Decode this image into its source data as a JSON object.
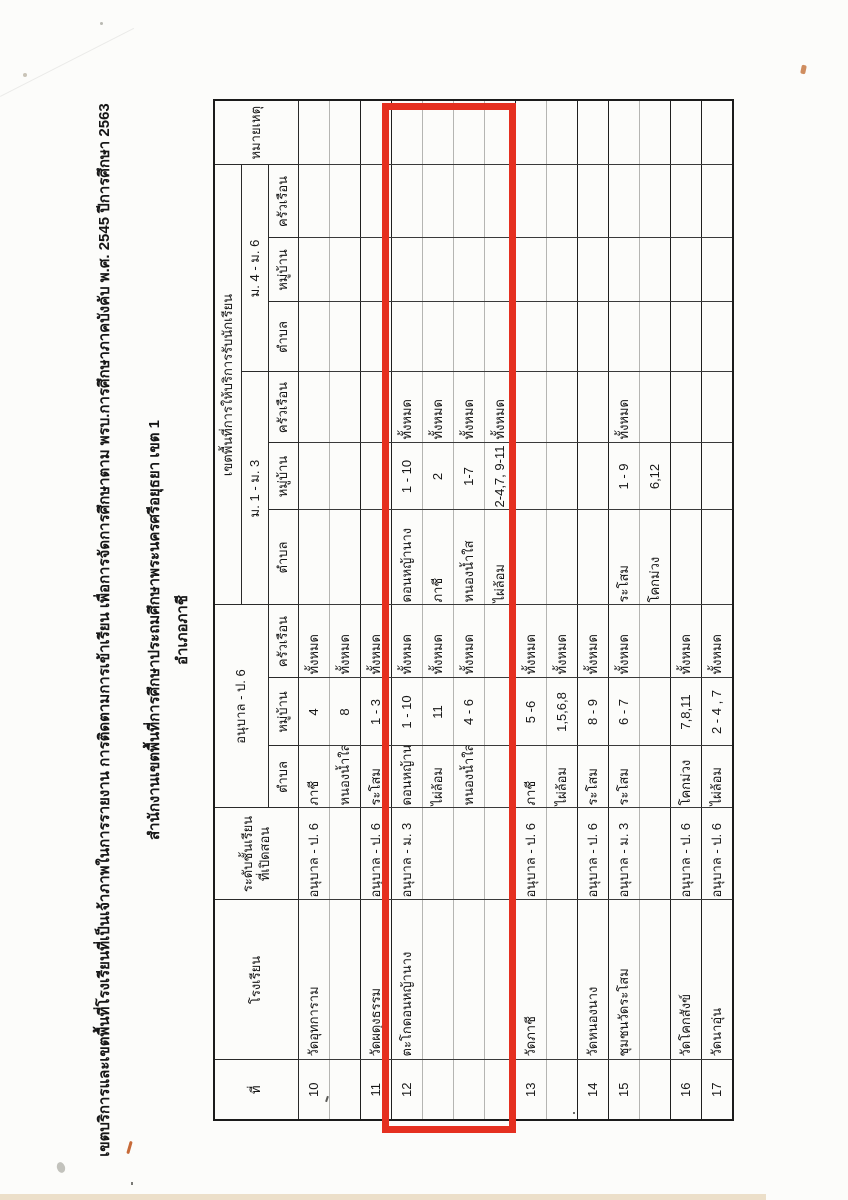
{
  "titles": {
    "line1": "เขตบริการและเขตพื้นที่โรงเรียนที่เป็นเจ้าภาพในการรายงาน การติดตามการเข้าเรียน เพื่อการจัดการศึกษาตาม พรบ.การศึกษาภาคบังคับ พ.ศ. 2545 ปีการศึกษา 2563",
    "line2": "สำนักงานเขตพื้นที่การศึกษาประถมศึกษาพระนครศรีอยุธยา เขต 1",
    "line3": "อำเภอภาชี"
  },
  "table": {
    "headers": {
      "no": "ที่",
      "school": "โรงเรียน",
      "grade_l1": "ระดับชั้นเรียน",
      "grade_l2": "ที่เปิดสอน",
      "service_area": "เขตพื้นที่การให้บริการรับนักเรียน",
      "group_anuban": "อนุบาล - ป. 6",
      "group_m1": "ม. 1 - ม. 3",
      "group_m4": "ม. 4 - ม. 6",
      "sub_tambon": "ตำบล",
      "sub_muban": "หมู่บ้าน",
      "sub_kruaruean": "ครัวเรือน",
      "remark": "หมายเหตุ"
    },
    "rows": [
      {
        "no": "10",
        "school": "วัดอุทการาม",
        "grade": "อนุบาล - ป. 6",
        "lines": [
          {
            "anuban": [
              "ภาชี",
              "4",
              "ทั้งหมด"
            ]
          },
          {
            "anuban": [
              "หนองน้ำใส",
              "8",
              "ทั้งหมด"
            ]
          }
        ]
      },
      {
        "no": "11",
        "school": "วัดผดุงธรรม",
        "grade": "อนุบาล - ป. 6",
        "lines": [
          {
            "anuban": [
              "ระโสม",
              "1 - 3",
              "ทั้งหมด"
            ]
          }
        ]
      },
      {
        "no": "12",
        "school": "ตะโกดอนหญ้านาง",
        "grade": "อนุบาล - ม. 3",
        "highlighted": true,
        "lines": [
          {
            "anuban": [
              "ดอนหญ้านาง",
              "1 - 10",
              "ทั้งหมด"
            ],
            "m13": [
              "ดอนหญ้านาง",
              "1 - 10",
              "ทั้งหมด"
            ]
          },
          {
            "anuban": [
              "ไผ่ล้อม",
              "11",
              "ทั้งหมด"
            ],
            "m13": [
              "ภาชี",
              "2",
              "ทั้งหมด"
            ]
          },
          {
            "anuban": [
              "หนองน้ำใส",
              "4 - 6",
              "ทั้งหมด"
            ],
            "m13": [
              "หนองน้ำใส",
              "1-7",
              "ทั้งหมด"
            ]
          },
          {
            "m13": [
              "ไผ่ล้อม",
              "2-4,7, 9-11",
              "ทั้งหมด"
            ]
          }
        ]
      },
      {
        "no": "13",
        "school": "วัดภาชี",
        "grade": "อนุบาล - ป. 6",
        "lines": [
          {
            "anuban": [
              "ภาชี",
              "5 -6",
              "ทั้งหมด"
            ]
          },
          {
            "anuban": [
              "ไผ่ล้อม",
              "1,5,6,8",
              "ทั้งหมด"
            ]
          }
        ]
      },
      {
        "no": "14",
        "school": "วัดหนองนาง",
        "grade": "อนุบาล - ป. 6",
        "lines": [
          {
            "anuban": [
              "ระโสม",
              "8 - 9",
              "ทั้งหมด"
            ]
          }
        ]
      },
      {
        "no": "15",
        "school": "ชุมชนวัดระโสม",
        "grade": "อนุบาล - ม. 3",
        "lines": [
          {
            "anuban": [
              "ระโสม",
              "6 - 7",
              "ทั้งหมด"
            ],
            "m13": [
              "ระโสม",
              "1 - 9",
              "ทั้งหมด"
            ]
          },
          {
            "m13": [
              "โคกม่วง",
              "6,12",
              ""
            ]
          }
        ]
      },
      {
        "no": "16",
        "school": "วัดโคกสังข์",
        "grade": "อนุบาล - ป. 6",
        "lines": [
          {
            "anuban": [
              "โคกม่วง",
              "7,8,11",
              "ทั้งหมด"
            ]
          }
        ]
      },
      {
        "no": "17",
        "school": "วัดนาอุ่น",
        "grade": "อนุบาล - ป. 6",
        "lines": [
          {
            "anuban": [
              "ไผ่ล้อม",
              "2 - 4 , 7",
              "ทั้งหมด"
            ]
          }
        ]
      }
    ]
  },
  "highlight": {
    "target_row_no": "12",
    "color": "#e53020"
  }
}
